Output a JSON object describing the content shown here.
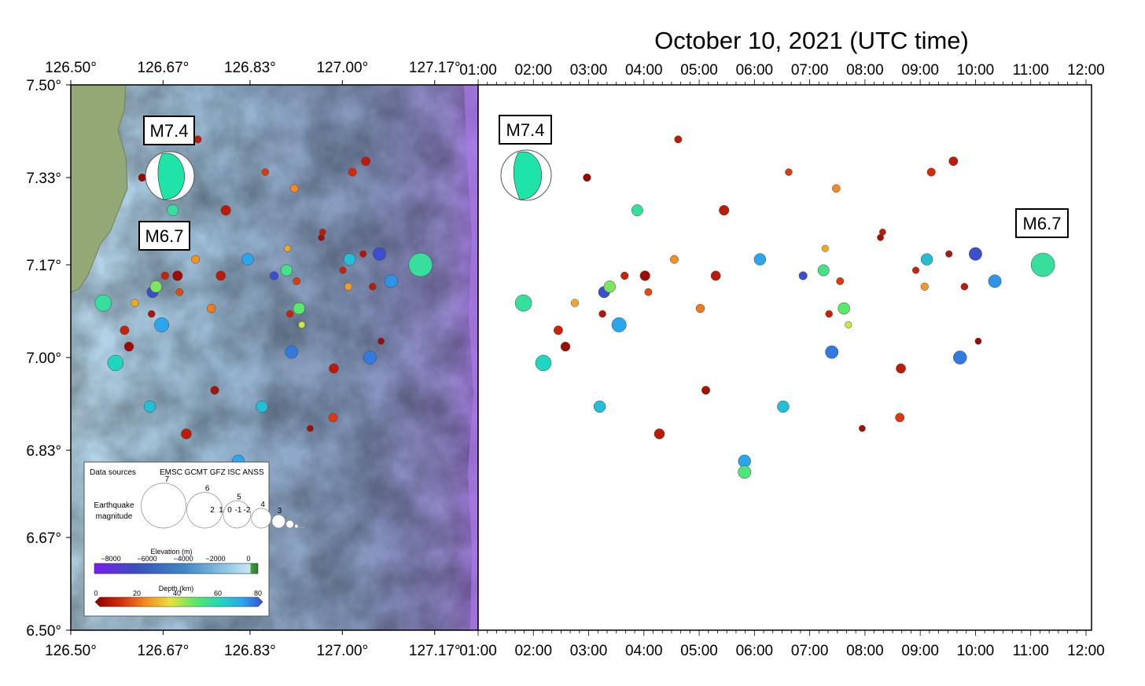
{
  "title": "October 10, 2021 (UTC time)",
  "map": {
    "lon_labels": [
      "126.50°",
      "126.67°",
      "126.83°",
      "127.00°",
      "127.17°"
    ],
    "lon_values": [
      126.5,
      126.67,
      126.83,
      127.0,
      127.17
    ],
    "lat_labels": [
      "7.50°",
      "7.33°",
      "7.17°",
      "7.00°",
      "6.83°",
      "6.67°",
      "6.50°"
    ],
    "lat_values": [
      7.5,
      7.33,
      7.17,
      7.0,
      6.83,
      6.67,
      6.5
    ],
    "lon_range": [
      126.5,
      127.25
    ],
    "lat_range": [
      6.5,
      7.5
    ]
  },
  "time_axis": {
    "labels": [
      "01:00",
      "02:00",
      "03:00",
      "04:00",
      "05:00",
      "06:00",
      "07:00",
      "08:00",
      "09:00",
      "10:00",
      "11:00",
      "12:00"
    ],
    "range_hours": [
      1,
      12.1
    ]
  },
  "annotations": [
    {
      "label": "M7.4",
      "panel": "map"
    },
    {
      "label": "M6.7",
      "panel": "map"
    },
    {
      "label": "M7.4",
      "panel": "time"
    },
    {
      "label": "M6.7",
      "panel": "time"
    }
  ],
  "legend": {
    "sources_label": "Data sources",
    "sources": "EMSC GCMT GFZ ISC ANSS",
    "magnitude_title_1": "Earthquake",
    "magnitude_title_2": "magnitude",
    "magnitudes": [
      "7",
      "6",
      "5",
      "4",
      "3",
      "2",
      "1",
      "0",
      "-1",
      "-2"
    ],
    "elevation_title": "Elevation (m)",
    "elevation_ticks": [
      "−8000",
      "−6000",
      "−4000",
      "−2000",
      "0"
    ],
    "depth_title": "Depth (km)",
    "depth_ticks": [
      "0",
      "20",
      "40",
      "60",
      "80"
    ]
  },
  "colors": {
    "ocean_shallow": "#a9cde3",
    "ocean_deep": "#8fa3c6",
    "trench": "#a178e0",
    "land": "#93a874",
    "mechanism": "#1fe3a8"
  },
  "chart_data": {
    "type": "scatter",
    "x_axis": "time (hours UTC) on right panel; longitude on map panel",
    "y": "latitude",
    "events": [
      {
        "t": 1.82,
        "lat": 7.1,
        "mag": 5.2,
        "depth": 55
      },
      {
        "t": 2.18,
        "lat": 6.99,
        "mag": 5.0,
        "depth": 60
      },
      {
        "t": 2.45,
        "lat": 7.05,
        "mag": 3.2,
        "depth": 10
      },
      {
        "t": 2.58,
        "lat": 7.02,
        "mag": 3.3,
        "depth": 3
      },
      {
        "t": 2.75,
        "lat": 7.1,
        "mag": 2.8,
        "depth": 28
      },
      {
        "t": 2.97,
        "lat": 7.33,
        "mag": 2.8,
        "depth": 2
      },
      {
        "t": 3.2,
        "lat": 6.91,
        "mag": 4.0,
        "depth": 65
      },
      {
        "t": 3.25,
        "lat": 7.08,
        "mag": 2.6,
        "depth": 6
      },
      {
        "t": 3.28,
        "lat": 7.12,
        "mag": 3.9,
        "depth": 80
      },
      {
        "t": 3.38,
        "lat": 7.13,
        "mag": 4.0,
        "depth": 45
      },
      {
        "t": 3.55,
        "lat": 7.06,
        "mag": 4.7,
        "depth": 70
      },
      {
        "t": 3.65,
        "lat": 7.15,
        "mag": 2.8,
        "depth": 10
      },
      {
        "t": 3.88,
        "lat": 7.27,
        "mag": 3.9,
        "depth": 55
      },
      {
        "t": 4.02,
        "lat": 7.15,
        "mag": 3.5,
        "depth": 3
      },
      {
        "t": 4.08,
        "lat": 7.12,
        "mag": 2.7,
        "depth": 16
      },
      {
        "t": 4.28,
        "lat": 6.86,
        "mag": 3.6,
        "depth": 8
      },
      {
        "t": 4.55,
        "lat": 7.18,
        "mag": 3.0,
        "depth": 25
      },
      {
        "t": 4.62,
        "lat": 7.4,
        "mag": 2.7,
        "depth": 8
      },
      {
        "t": 5.02,
        "lat": 7.09,
        "mag": 3.1,
        "depth": 22
      },
      {
        "t": 5.12,
        "lat": 6.94,
        "mag": 3.0,
        "depth": 5
      },
      {
        "t": 5.3,
        "lat": 7.15,
        "mag": 3.4,
        "depth": 8
      },
      {
        "t": 5.45,
        "lat": 7.27,
        "mag": 3.5,
        "depth": 8
      },
      {
        "t": 5.82,
        "lat": 6.81,
        "mag": 4.2,
        "depth": 70
      },
      {
        "t": 5.82,
        "lat": 6.79,
        "mag": 4.3,
        "depth": 50
      },
      {
        "t": 6.1,
        "lat": 7.18,
        "mag": 4.0,
        "depth": 70
      },
      {
        "t": 6.52,
        "lat": 6.91,
        "mag": 4.0,
        "depth": 65
      },
      {
        "t": 6.62,
        "lat": 7.34,
        "mag": 2.6,
        "depth": 14
      },
      {
        "t": 6.88,
        "lat": 7.15,
        "mag": 3.0,
        "depth": 80
      },
      {
        "t": 7.25,
        "lat": 7.16,
        "mag": 3.9,
        "depth": 52
      },
      {
        "t": 7.28,
        "lat": 7.2,
        "mag": 2.5,
        "depth": 28
      },
      {
        "t": 7.35,
        "lat": 7.08,
        "mag": 2.6,
        "depth": 10
      },
      {
        "t": 7.4,
        "lat": 7.01,
        "mag": 4.3,
        "depth": 75
      },
      {
        "t": 7.48,
        "lat": 7.31,
        "mag": 2.9,
        "depth": 24
      },
      {
        "t": 7.55,
        "lat": 7.14,
        "mag": 2.7,
        "depth": 14
      },
      {
        "t": 7.62,
        "lat": 7.09,
        "mag": 4.0,
        "depth": 48
      },
      {
        "t": 7.7,
        "lat": 7.06,
        "mag": 2.5,
        "depth": 38
      },
      {
        "t": 7.95,
        "lat": 6.87,
        "mag": 2.4,
        "depth": 4
      },
      {
        "t": 8.28,
        "lat": 7.22,
        "mag": 2.4,
        "depth": 4
      },
      {
        "t": 8.32,
        "lat": 7.23,
        "mag": 2.4,
        "depth": 8
      },
      {
        "t": 8.63,
        "lat": 6.89,
        "mag": 3.2,
        "depth": 14
      },
      {
        "t": 8.65,
        "lat": 6.98,
        "mag": 3.4,
        "depth": 8
      },
      {
        "t": 8.92,
        "lat": 7.16,
        "mag": 2.5,
        "depth": 10
      },
      {
        "t": 9.08,
        "lat": 7.13,
        "mag": 2.8,
        "depth": 26
      },
      {
        "t": 9.12,
        "lat": 7.18,
        "mag": 4.0,
        "depth": 65
      },
      {
        "t": 9.2,
        "lat": 7.34,
        "mag": 3.0,
        "depth": 12
      },
      {
        "t": 9.52,
        "lat": 7.19,
        "mag": 2.5,
        "depth": 6
      },
      {
        "t": 9.6,
        "lat": 7.36,
        "mag": 3.2,
        "depth": 8
      },
      {
        "t": 9.72,
        "lat": 7.0,
        "mag": 4.4,
        "depth": 75
      },
      {
        "t": 9.8,
        "lat": 7.13,
        "mag": 2.6,
        "depth": 8
      },
      {
        "t": 10.0,
        "lat": 7.19,
        "mag": 4.3,
        "depth": 80
      },
      {
        "t": 10.05,
        "lat": 7.03,
        "mag": 2.4,
        "depth": 3
      },
      {
        "t": 10.35,
        "lat": 7.14,
        "mag": 4.3,
        "depth": 72
      },
      {
        "t": 11.22,
        "lat": 7.17,
        "mag": 6.7,
        "depth": 55
      }
    ]
  }
}
